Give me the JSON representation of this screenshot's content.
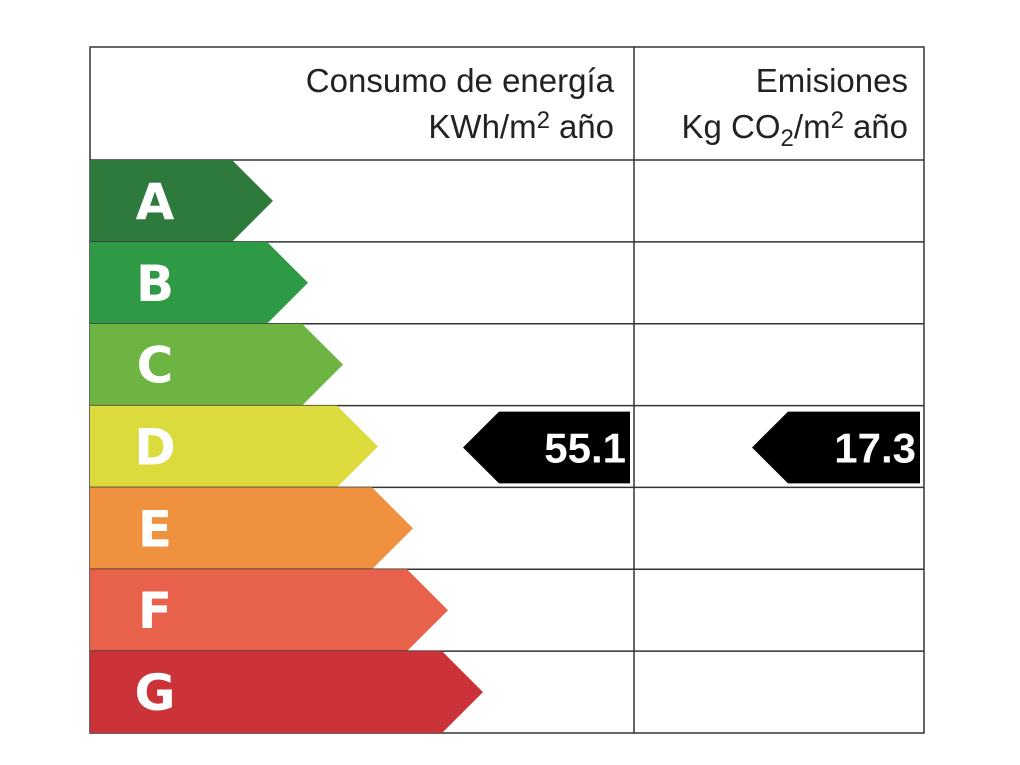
{
  "header": {
    "consumption": {
      "title": "Consumo de energía",
      "unit": "KWh/m",
      "unit_exp": "2",
      "unit_tail": "año"
    },
    "emissions": {
      "title": "Emisiones",
      "unit": "Kg CO",
      "unit_sub": "2",
      "unit_mid": "/m",
      "unit_exp": "2",
      "unit_tail": "año"
    }
  },
  "rows": [
    {
      "letter": "A",
      "color": "#2e7a3c"
    },
    {
      "letter": "B",
      "color": "#2f9a45"
    },
    {
      "letter": "C",
      "color": "#6db443"
    },
    {
      "letter": "D",
      "color": "#dcdb3e",
      "consumption": 55.1,
      "emissions": 17.3
    },
    {
      "letter": "E",
      "color": "#f0913f"
    },
    {
      "letter": "F",
      "color": "#e8614b"
    },
    {
      "letter": "G",
      "color": "#cc3338"
    }
  ]
}
